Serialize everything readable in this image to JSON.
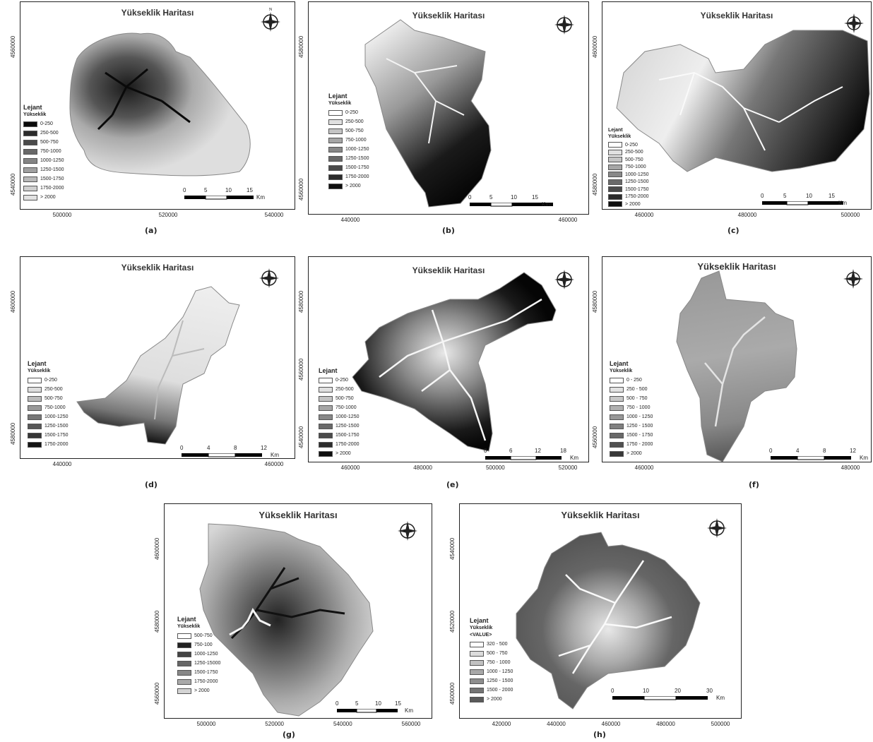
{
  "map_title": "Yükseklik Haritası",
  "legend_title": "Lejant",
  "legend_subtitle": "Yükseklik",
  "compass": {
    "n": "N",
    "s": "S",
    "e": "E",
    "w": "W"
  },
  "scale_unit": "Km",
  "panels": [
    {
      "id": "a",
      "caption": "(a)",
      "ticks_y": [
        "4560000",
        "4540000"
      ],
      "ticks_x": [
        "500000",
        "520000",
        "540000"
      ],
      "scale": [
        "0",
        "5",
        "10",
        "15"
      ],
      "legend": [
        {
          "label": "0-250",
          "color": "#0b0b0b"
        },
        {
          "label": "250-500",
          "color": "#2b2b2b"
        },
        {
          "label": "500-750",
          "color": "#4a4a4a"
        },
        {
          "label": "750-1000",
          "color": "#686868"
        },
        {
          "label": "1000-1250",
          "color": "#858585"
        },
        {
          "label": "1250-1500",
          "color": "#a0a0a0"
        },
        {
          "label": "1500-1750",
          "color": "#b9b9b9"
        },
        {
          "label": "1750-2000",
          "color": "#cfcfcf"
        },
        {
          "label": "> 2000",
          "color": "#e2e2e2"
        }
      ]
    },
    {
      "id": "b",
      "caption": "(b)",
      "ticks_y": [
        "4580000",
        "4560000"
      ],
      "ticks_x": [
        "440000",
        "460000"
      ],
      "scale": [
        "0",
        "5",
        "10",
        "15"
      ],
      "legend": [
        {
          "label": "0-250",
          "color": "#ffffff"
        },
        {
          "label": "250-500",
          "color": "#e0e0e0"
        },
        {
          "label": "500-750",
          "color": "#c4c4c4"
        },
        {
          "label": "750-1000",
          "color": "#a6a6a6"
        },
        {
          "label": "1000-1250",
          "color": "#888888"
        },
        {
          "label": "1250-1500",
          "color": "#6a6a6a"
        },
        {
          "label": "1500-1750",
          "color": "#4b4b4b"
        },
        {
          "label": "1750-2000",
          "color": "#2c2c2c"
        },
        {
          "label": "> 2000",
          "color": "#0e0e0e"
        }
      ]
    },
    {
      "id": "c",
      "caption": "(c)",
      "ticks_y": [
        "4600000",
        "4580000"
      ],
      "ticks_x": [
        "460000",
        "480000",
        "500000"
      ],
      "scale": [
        "0",
        "5",
        "10",
        "15"
      ],
      "legend": [
        {
          "label": "0-250",
          "color": "#ffffff"
        },
        {
          "label": "250-500",
          "color": "#e0e0e0"
        },
        {
          "label": "500-750",
          "color": "#c4c4c4"
        },
        {
          "label": "750-1000",
          "color": "#a6a6a6"
        },
        {
          "label": "1000-1250",
          "color": "#888888"
        },
        {
          "label": "1250-1500",
          "color": "#6a6a6a"
        },
        {
          "label": "1500-1750",
          "color": "#4b4b4b"
        },
        {
          "label": "1750-2000",
          "color": "#2c2c2c"
        },
        {
          "label": "> 2000",
          "color": "#0e0e0e"
        }
      ]
    },
    {
      "id": "d",
      "caption": "(d)",
      "ticks_y": [
        "4600000",
        "4580000"
      ],
      "ticks_x": [
        "440000",
        "460000"
      ],
      "scale": [
        "0",
        "4",
        "8",
        "12"
      ],
      "legend": [
        {
          "label": "0-250",
          "color": "#ffffff"
        },
        {
          "label": "250-500",
          "color": "#dedede"
        },
        {
          "label": "500-750",
          "color": "#bcbcbc"
        },
        {
          "label": "750-1000",
          "color": "#9a9a9a"
        },
        {
          "label": "1000-1250",
          "color": "#787878"
        },
        {
          "label": "1250-1500",
          "color": "#565656"
        },
        {
          "label": "1500-1750",
          "color": "#353535"
        },
        {
          "label": "1750-2000",
          "color": "#141414"
        }
      ]
    },
    {
      "id": "e",
      "caption": "(e)",
      "ticks_y": [
        "4580000",
        "4560000",
        "4540000"
      ],
      "ticks_x": [
        "460000",
        "480000",
        "500000",
        "520000"
      ],
      "scale": [
        "0",
        "6",
        "12",
        "18"
      ],
      "legend": [
        {
          "label": "0-250",
          "color": "#ffffff"
        },
        {
          "label": "250-500",
          "color": "#e0e0e0"
        },
        {
          "label": "500-750",
          "color": "#c4c4c4"
        },
        {
          "label": "750-1000",
          "color": "#a6a6a6"
        },
        {
          "label": "1000-1250",
          "color": "#888888"
        },
        {
          "label": "1250-1500",
          "color": "#6a6a6a"
        },
        {
          "label": "1500-1750",
          "color": "#4b4b4b"
        },
        {
          "label": "1750-2000",
          "color": "#2c2c2c"
        },
        {
          "label": "> 2000",
          "color": "#0e0e0e"
        }
      ]
    },
    {
      "id": "f",
      "caption": "(f)",
      "ticks_y": [
        "4580000",
        "4560000"
      ],
      "ticks_x": [
        "460000",
        "480000"
      ],
      "scale": [
        "0",
        "4",
        "8",
        "12"
      ],
      "legend": [
        {
          "label": "0 - 250",
          "color": "#ffffff"
        },
        {
          "label": "250 - 500",
          "color": "#e2e2e2"
        },
        {
          "label": "500 - 750",
          "color": "#c8c8c8"
        },
        {
          "label": "750 - 1000",
          "color": "#b0b0b0"
        },
        {
          "label": "1000 - 1250",
          "color": "#989898"
        },
        {
          "label": "1250 - 1500",
          "color": "#808080"
        },
        {
          "label": "1500 - 1750",
          "color": "#686868"
        },
        {
          "label": "1750 - 2000",
          "color": "#505050"
        },
        {
          "label": "> 2000",
          "color": "#383838"
        }
      ]
    },
    {
      "id": "g",
      "caption": "(g)",
      "ticks_y": [
        "4600000",
        "4580000",
        "4560000"
      ],
      "ticks_x": [
        "500000",
        "520000",
        "540000",
        "560000"
      ],
      "scale": [
        "0",
        "5",
        "10",
        "15"
      ],
      "legend": [
        {
          "label": "500-750",
          "color": "#ffffff"
        },
        {
          "label": "750-100",
          "color": "#222222"
        },
        {
          "label": "1000-1250",
          "color": "#444444"
        },
        {
          "label": "1250-15000",
          "color": "#666666"
        },
        {
          "label": "1500-1750",
          "color": "#888888"
        },
        {
          "label": "1750-2000",
          "color": "#aaaaaa"
        },
        {
          "label": "> 2000",
          "color": "#d4d4d4"
        }
      ]
    },
    {
      "id": "h",
      "caption": "(h)",
      "ticks_y": [
        "4540000",
        "4520000",
        "4500000"
      ],
      "ticks_x": [
        "420000",
        "440000",
        "460000",
        "480000",
        "500000"
      ],
      "scale": [
        "0",
        "10",
        "20",
        "30"
      ],
      "legend_value": "<VALUE>",
      "legend": [
        {
          "label": "320 - 500",
          "color": "#ffffff"
        },
        {
          "label": "500 - 750",
          "color": "#dcdcdc"
        },
        {
          "label": "750 - 1000",
          "color": "#c2c2c2"
        },
        {
          "label": "1000 - 1250",
          "color": "#a8a8a8"
        },
        {
          "label": "1250 - 1500",
          "color": "#8e8e8e"
        },
        {
          "label": "1500 - 2000",
          "color": "#747474"
        },
        {
          "label": "> 2000",
          "color": "#5a5a5a"
        }
      ]
    }
  ]
}
